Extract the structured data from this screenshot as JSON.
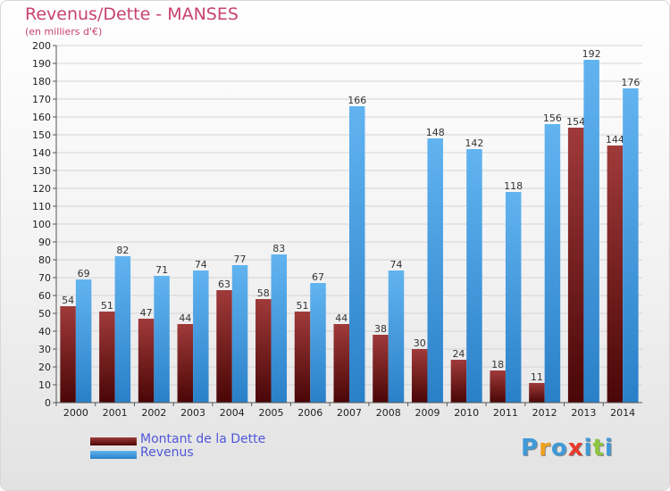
{
  "title": "Revenus/Dette - MANSES",
  "unit": "(en milliers d'€)",
  "logo": {
    "chars": [
      "P",
      "r",
      "o",
      "x",
      "i",
      "t",
      "i"
    ],
    "colors": [
      "#3f9ad8",
      "#f0a020",
      "#3f9ad8",
      "#e8392b",
      "#3f9ad8",
      "#8cc63f",
      "#3f9ad8"
    ]
  },
  "chart_data": {
    "type": "bar",
    "categories": [
      "2000",
      "2001",
      "2002",
      "2003",
      "2004",
      "2005",
      "2006",
      "2007",
      "2008",
      "2009",
      "2010",
      "2011",
      "2012",
      "2013",
      "2014"
    ],
    "series": [
      {
        "name": "Montant de la Dette",
        "color": "#7a1a1a",
        "values": [
          54,
          51,
          47,
          44,
          63,
          58,
          51,
          44,
          38,
          30,
          24,
          18,
          11,
          154,
          144
        ]
      },
      {
        "name": "Revenus",
        "color": "#4aa0e0",
        "values": [
          69,
          82,
          71,
          74,
          77,
          83,
          67,
          166,
          74,
          148,
          142,
          118,
          156,
          192,
          176
        ]
      }
    ],
    "ylim": [
      0,
      200
    ],
    "ytick_step": 10,
    "grid": true,
    "legend": "bottom-left"
  }
}
